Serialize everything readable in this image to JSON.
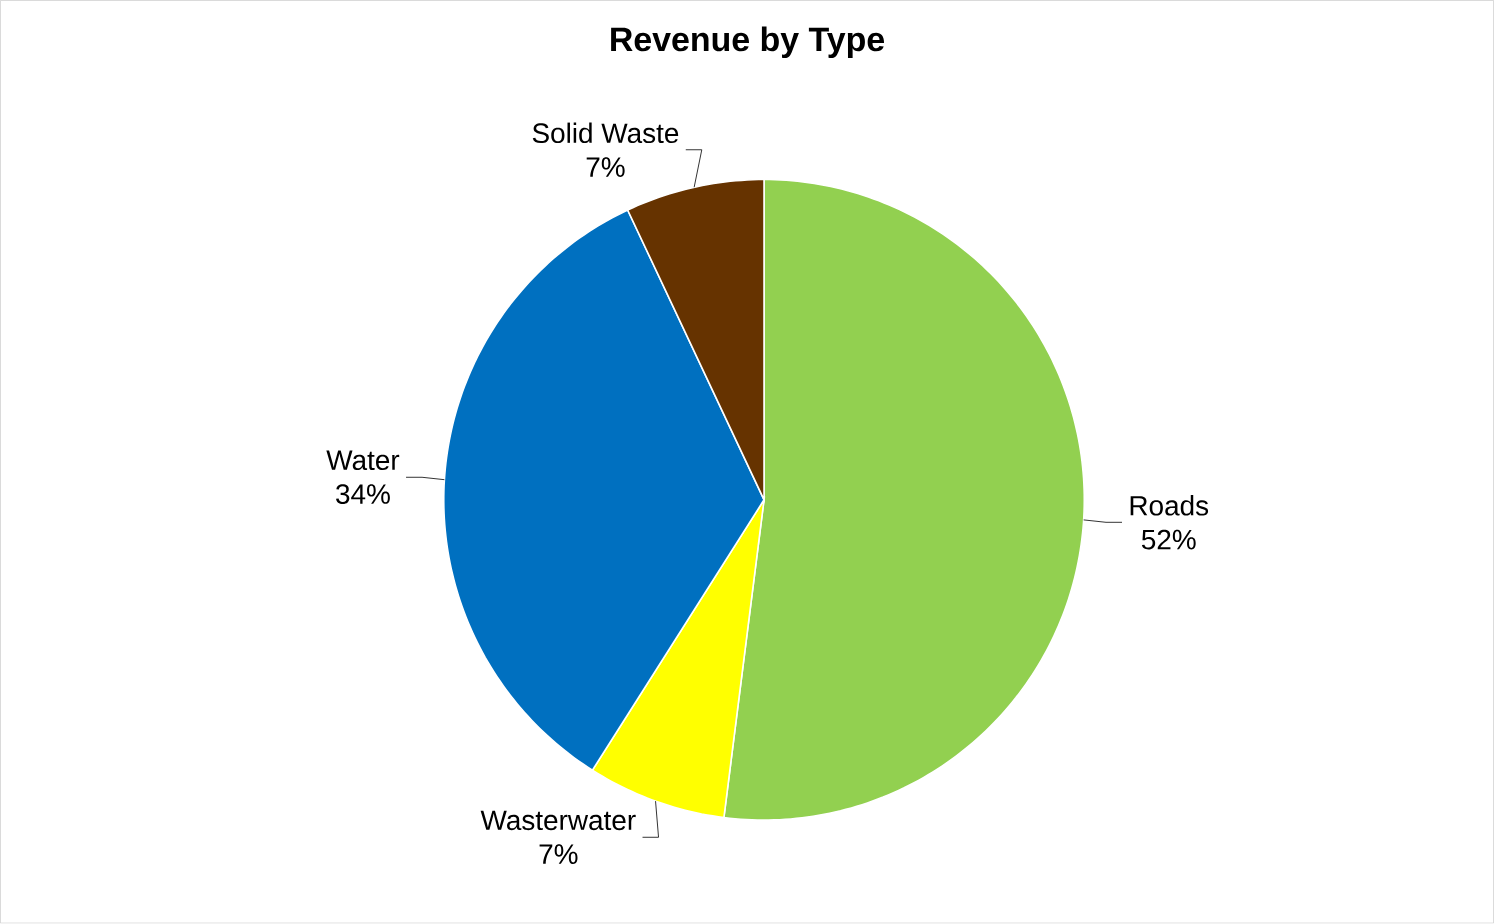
{
  "chart_data": {
    "type": "pie",
    "title": "Revenue by Type",
    "categories": [
      "Roads",
      "Wasterwater",
      "Water",
      "Solid Waste"
    ],
    "values": [
      52,
      7,
      34,
      7
    ],
    "value_labels": [
      "52%",
      "7%",
      "34%",
      "7%"
    ],
    "colors": [
      "#92d050",
      "#ffff00",
      "#0070c0",
      "#663300"
    ]
  }
}
